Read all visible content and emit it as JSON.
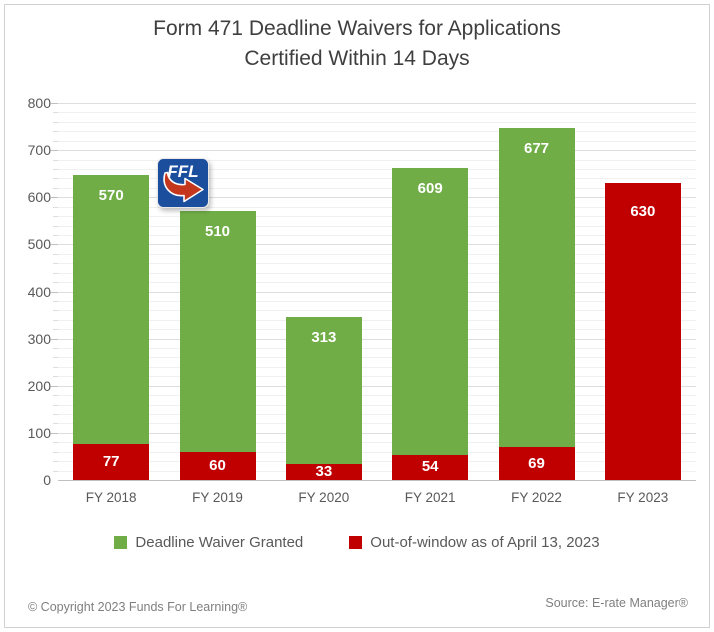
{
  "title": {
    "line1": "Form 471 Deadline Waivers for Applications",
    "line2": "Certified Within 14 Days"
  },
  "chart_data": {
    "type": "bar",
    "stacked": true,
    "title": "Form 471 Deadline Waivers for Applications Certified Within 14 Days",
    "categories": [
      "FY 2018",
      "FY 2019",
      "FY 2020",
      "FY 2021",
      "FY 2022",
      "FY 2023"
    ],
    "series": [
      {
        "name": "Deadline Waiver Granted",
        "color": "#70AD47",
        "values": [
          570,
          510,
          313,
          609,
          677,
          0
        ]
      },
      {
        "name": "Out-of-window as of April 13, 2023",
        "color": "#C00000",
        "values": [
          77,
          60,
          33,
          54,
          69,
          630
        ]
      }
    ],
    "ylim": [
      0,
      800
    ],
    "y_major_step": 100,
    "y_minor_step": 20,
    "y_tick_labels": [
      "0",
      "100",
      "200",
      "300",
      "400",
      "500",
      "600",
      "700",
      "800"
    ],
    "grid": true,
    "legend_position": "bottom",
    "value_label_color": "#FFFFFF"
  },
  "logo": {
    "text": "FFL",
    "blue": "#1C4E9E",
    "red": "#C4371C"
  },
  "footer": {
    "copyright": "© Copyright 2023 Funds For Learning®",
    "source": "Source: E-rate Manager®"
  }
}
